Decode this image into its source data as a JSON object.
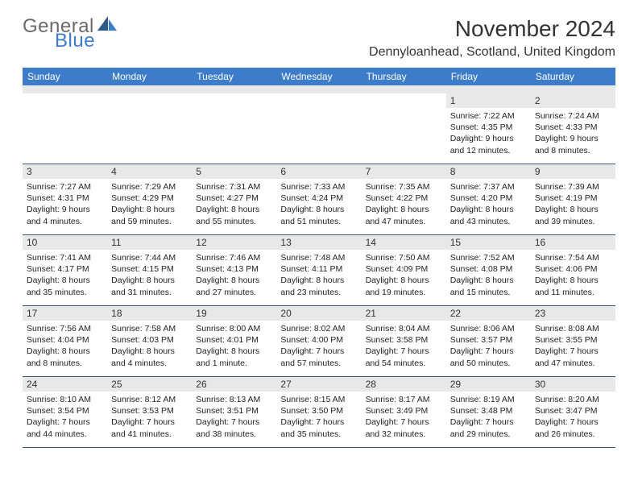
{
  "logo": {
    "general": "General",
    "blue": "Blue"
  },
  "title": "November 2024",
  "location": "Dennyloanhead, Scotland, United Kingdom",
  "colors": {
    "header_bg": "#3d7cc9",
    "header_text": "#ffffff",
    "daynum_bg": "#e8e8e8",
    "body_text": "#222222",
    "border": "#2e5a8a"
  },
  "day_headers": [
    "Sunday",
    "Monday",
    "Tuesday",
    "Wednesday",
    "Thursday",
    "Friday",
    "Saturday"
  ],
  "weeks": [
    [
      null,
      null,
      null,
      null,
      null,
      {
        "n": "1",
        "sr": "Sunrise: 7:22 AM",
        "ss": "Sunset: 4:35 PM",
        "dl": "Daylight: 9 hours and 12 minutes."
      },
      {
        "n": "2",
        "sr": "Sunrise: 7:24 AM",
        "ss": "Sunset: 4:33 PM",
        "dl": "Daylight: 9 hours and 8 minutes."
      }
    ],
    [
      {
        "n": "3",
        "sr": "Sunrise: 7:27 AM",
        "ss": "Sunset: 4:31 PM",
        "dl": "Daylight: 9 hours and 4 minutes."
      },
      {
        "n": "4",
        "sr": "Sunrise: 7:29 AM",
        "ss": "Sunset: 4:29 PM",
        "dl": "Daylight: 8 hours and 59 minutes."
      },
      {
        "n": "5",
        "sr": "Sunrise: 7:31 AM",
        "ss": "Sunset: 4:27 PM",
        "dl": "Daylight: 8 hours and 55 minutes."
      },
      {
        "n": "6",
        "sr": "Sunrise: 7:33 AM",
        "ss": "Sunset: 4:24 PM",
        "dl": "Daylight: 8 hours and 51 minutes."
      },
      {
        "n": "7",
        "sr": "Sunrise: 7:35 AM",
        "ss": "Sunset: 4:22 PM",
        "dl": "Daylight: 8 hours and 47 minutes."
      },
      {
        "n": "8",
        "sr": "Sunrise: 7:37 AM",
        "ss": "Sunset: 4:20 PM",
        "dl": "Daylight: 8 hours and 43 minutes."
      },
      {
        "n": "9",
        "sr": "Sunrise: 7:39 AM",
        "ss": "Sunset: 4:19 PM",
        "dl": "Daylight: 8 hours and 39 minutes."
      }
    ],
    [
      {
        "n": "10",
        "sr": "Sunrise: 7:41 AM",
        "ss": "Sunset: 4:17 PM",
        "dl": "Daylight: 8 hours and 35 minutes."
      },
      {
        "n": "11",
        "sr": "Sunrise: 7:44 AM",
        "ss": "Sunset: 4:15 PM",
        "dl": "Daylight: 8 hours and 31 minutes."
      },
      {
        "n": "12",
        "sr": "Sunrise: 7:46 AM",
        "ss": "Sunset: 4:13 PM",
        "dl": "Daylight: 8 hours and 27 minutes."
      },
      {
        "n": "13",
        "sr": "Sunrise: 7:48 AM",
        "ss": "Sunset: 4:11 PM",
        "dl": "Daylight: 8 hours and 23 minutes."
      },
      {
        "n": "14",
        "sr": "Sunrise: 7:50 AM",
        "ss": "Sunset: 4:09 PM",
        "dl": "Daylight: 8 hours and 19 minutes."
      },
      {
        "n": "15",
        "sr": "Sunrise: 7:52 AM",
        "ss": "Sunset: 4:08 PM",
        "dl": "Daylight: 8 hours and 15 minutes."
      },
      {
        "n": "16",
        "sr": "Sunrise: 7:54 AM",
        "ss": "Sunset: 4:06 PM",
        "dl": "Daylight: 8 hours and 11 minutes."
      }
    ],
    [
      {
        "n": "17",
        "sr": "Sunrise: 7:56 AM",
        "ss": "Sunset: 4:04 PM",
        "dl": "Daylight: 8 hours and 8 minutes."
      },
      {
        "n": "18",
        "sr": "Sunrise: 7:58 AM",
        "ss": "Sunset: 4:03 PM",
        "dl": "Daylight: 8 hours and 4 minutes."
      },
      {
        "n": "19",
        "sr": "Sunrise: 8:00 AM",
        "ss": "Sunset: 4:01 PM",
        "dl": "Daylight: 8 hours and 1 minute."
      },
      {
        "n": "20",
        "sr": "Sunrise: 8:02 AM",
        "ss": "Sunset: 4:00 PM",
        "dl": "Daylight: 7 hours and 57 minutes."
      },
      {
        "n": "21",
        "sr": "Sunrise: 8:04 AM",
        "ss": "Sunset: 3:58 PM",
        "dl": "Daylight: 7 hours and 54 minutes."
      },
      {
        "n": "22",
        "sr": "Sunrise: 8:06 AM",
        "ss": "Sunset: 3:57 PM",
        "dl": "Daylight: 7 hours and 50 minutes."
      },
      {
        "n": "23",
        "sr": "Sunrise: 8:08 AM",
        "ss": "Sunset: 3:55 PM",
        "dl": "Daylight: 7 hours and 47 minutes."
      }
    ],
    [
      {
        "n": "24",
        "sr": "Sunrise: 8:10 AM",
        "ss": "Sunset: 3:54 PM",
        "dl": "Daylight: 7 hours and 44 minutes."
      },
      {
        "n": "25",
        "sr": "Sunrise: 8:12 AM",
        "ss": "Sunset: 3:53 PM",
        "dl": "Daylight: 7 hours and 41 minutes."
      },
      {
        "n": "26",
        "sr": "Sunrise: 8:13 AM",
        "ss": "Sunset: 3:51 PM",
        "dl": "Daylight: 7 hours and 38 minutes."
      },
      {
        "n": "27",
        "sr": "Sunrise: 8:15 AM",
        "ss": "Sunset: 3:50 PM",
        "dl": "Daylight: 7 hours and 35 minutes."
      },
      {
        "n": "28",
        "sr": "Sunrise: 8:17 AM",
        "ss": "Sunset: 3:49 PM",
        "dl": "Daylight: 7 hours and 32 minutes."
      },
      {
        "n": "29",
        "sr": "Sunrise: 8:19 AM",
        "ss": "Sunset: 3:48 PM",
        "dl": "Daylight: 7 hours and 29 minutes."
      },
      {
        "n": "30",
        "sr": "Sunrise: 8:20 AM",
        "ss": "Sunset: 3:47 PM",
        "dl": "Daylight: 7 hours and 26 minutes."
      }
    ]
  ]
}
